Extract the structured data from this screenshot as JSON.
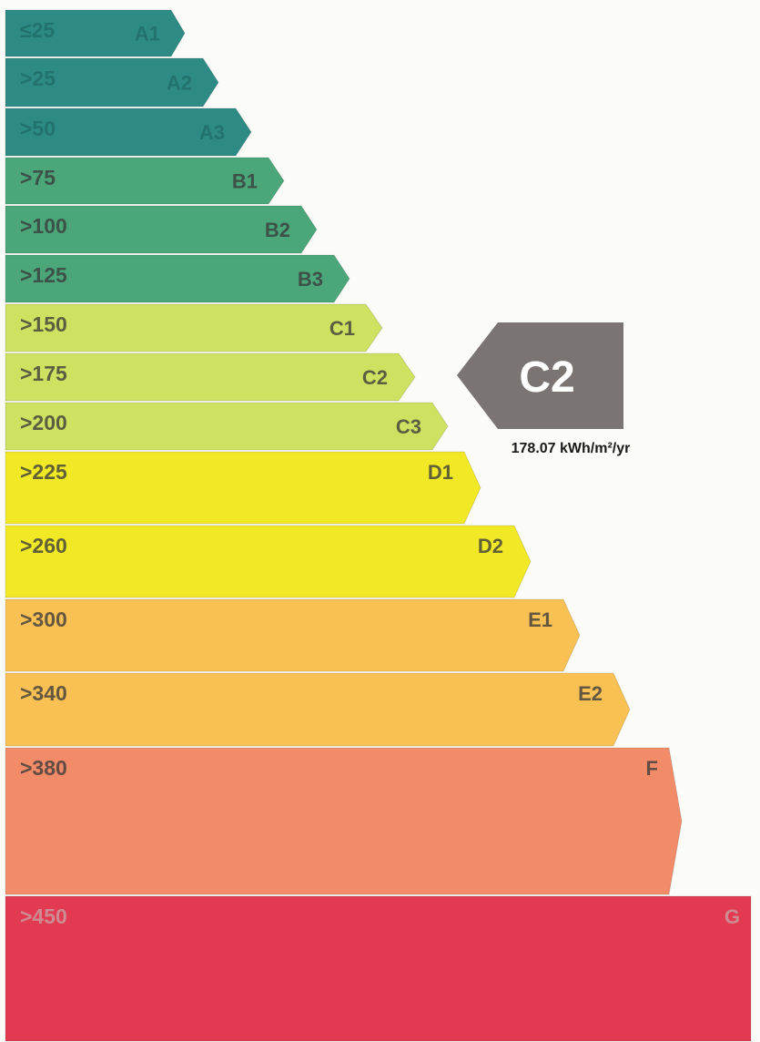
{
  "chart_data": {
    "type": "bar",
    "bands": [
      {
        "threshold": "≤25",
        "grade": "A1",
        "color": "#2e8a84",
        "text_color": "#1f6c68"
      },
      {
        "threshold": ">25",
        "grade": "A2",
        "color": "#2e8a84",
        "text_color": "#1f6c68"
      },
      {
        "threshold": ">50",
        "grade": "A3",
        "color": "#2e8a84",
        "text_color": "#1f6c68"
      },
      {
        "threshold": ">75",
        "grade": "B1",
        "color": "#4ba779",
        "text_color": "#3a3a3a"
      },
      {
        "threshold": ">100",
        "grade": "B2",
        "color": "#4ba779",
        "text_color": "#3a3a3a"
      },
      {
        "threshold": ">125",
        "grade": "B3",
        "color": "#4ba779",
        "text_color": "#3a3a3a"
      },
      {
        "threshold": ">150",
        "grade": "C1",
        "color": "#cfe160",
        "text_color": "#3a3a3a"
      },
      {
        "threshold": ">175",
        "grade": "C2",
        "color": "#cfe160",
        "text_color": "#3a3a3a"
      },
      {
        "threshold": ">200",
        "grade": "C3",
        "color": "#cfe160",
        "text_color": "#3a3a3a"
      },
      {
        "threshold": ">225",
        "grade": "D1",
        "color": "#f1e826",
        "text_color": "#3a3a3a"
      },
      {
        "threshold": ">260",
        "grade": "D2",
        "color": "#f1e826",
        "text_color": "#3a3a3a"
      },
      {
        "threshold": ">300",
        "grade": "E1",
        "color": "#f9c054",
        "text_color": "#3a3a3a"
      },
      {
        "threshold": ">340",
        "grade": "E2",
        "color": "#f9c054",
        "text_color": "#3a3a3a"
      },
      {
        "threshold": ">380",
        "grade": "F",
        "color": "#f28c68",
        "text_color": "#3a3a3a"
      },
      {
        "threshold": ">450",
        "grade": "G",
        "color": "#e23a50",
        "text_color": "#c8a0a4"
      }
    ],
    "indicator": {
      "grade": "C2",
      "band_index": 7,
      "value_label": "178.07 kWh/m²/yr",
      "color": "#7a7572"
    }
  }
}
